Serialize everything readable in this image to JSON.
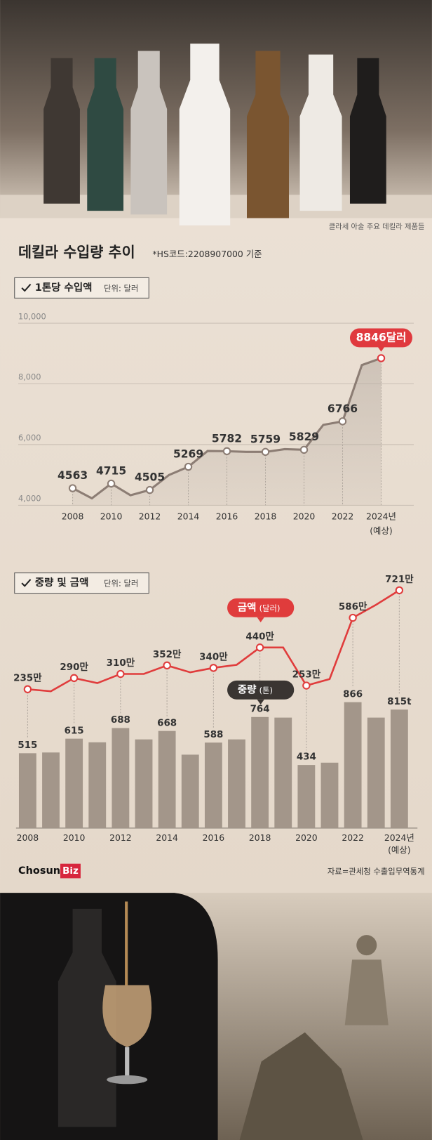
{
  "photo_caption": "클라세 아술 주요 데킬라 제품들",
  "header": {
    "title": "데킬라 수입량 추이",
    "subtitle": "*HS코드:2208907000 기준"
  },
  "chart_data": [
    {
      "type": "line",
      "title": "1톤당 수입액",
      "unit": "단위: 달러",
      "x": [
        2008,
        2009,
        2010,
        2011,
        2012,
        2013,
        2014,
        2015,
        2016,
        2017,
        2018,
        2019,
        2020,
        2021,
        2022,
        2023,
        2024
      ],
      "values": [
        4563,
        4230,
        4715,
        4330,
        4505,
        5000,
        5269,
        5790,
        5782,
        5760,
        5759,
        5850,
        5829,
        6650,
        6766,
        8620,
        8846
      ],
      "value_labels": [
        "4563",
        null,
        "4715",
        null,
        "4505",
        null,
        "5269",
        null,
        "5782",
        null,
        "5759",
        null,
        "5829",
        null,
        "6766",
        null,
        "8846달러"
      ],
      "color": "#8c7d74",
      "highlight_color": "#e0393e",
      "area": true,
      "xlim": [
        2008,
        2024
      ],
      "xticks": [
        2008,
        2010,
        2012,
        2014,
        2016,
        2018,
        2020,
        2022,
        {
          "value": 2024,
          "label": "2024년"
        }
      ],
      "forecast_note": "(예상)",
      "ylim": [
        4000,
        10000
      ],
      "yticks": [
        {
          "value": 10000,
          "label": "10,000"
        },
        {
          "value": 8000,
          "label": "8,000"
        },
        {
          "value": 6000,
          "label": "6,000"
        },
        {
          "value": 4000,
          "label": "4,000"
        }
      ],
      "grid": true
    },
    {
      "type": "bar_line",
      "title": "중량 및 금액",
      "unit": "단위: 달러",
      "x": [
        2008,
        2009,
        2010,
        2011,
        2012,
        2013,
        2014,
        2015,
        2016,
        2017,
        2018,
        2019,
        2020,
        2021,
        2022,
        2023,
        2024
      ],
      "xlim": [
        2008,
        2024
      ],
      "xticks": [
        2008,
        2010,
        2012,
        2014,
        2016,
        2018,
        2020,
        2022,
        {
          "value": 2024,
          "label": "2024년"
        }
      ],
      "forecast_note": "(예상)",
      "series": [
        {
          "name": "금액",
          "unit": "(달러)",
          "type": "line",
          "color": "#e03c3c",
          "values": [
            235,
            225,
            290,
            265,
            310,
            310,
            352,
            318,
            340,
            355,
            440,
            440,
            253,
            285,
            586,
            650,
            721
          ],
          "value_labels": [
            "235만",
            null,
            "290만",
            null,
            "310만",
            null,
            "352만",
            null,
            "340만",
            null,
            "440만",
            null,
            "253만",
            null,
            "586만",
            null,
            "721만"
          ]
        },
        {
          "name": "중량",
          "unit": "(톤)",
          "type": "bar",
          "color": "#a3968a",
          "values": [
            515,
            520,
            615,
            590,
            688,
            610,
            668,
            505,
            588,
            610,
            764,
            760,
            434,
            450,
            866,
            760,
            815
          ],
          "value_labels": [
            "515",
            null,
            "615",
            null,
            "688",
            null,
            "668",
            null,
            "588",
            null,
            "764",
            null,
            "434",
            null,
            "866",
            null,
            "815t"
          ]
        }
      ]
    }
  ],
  "footer": {
    "logo_main": "Chosun",
    "logo_badge": "Biz",
    "source": "자료=관세청 수출입무역통계"
  }
}
